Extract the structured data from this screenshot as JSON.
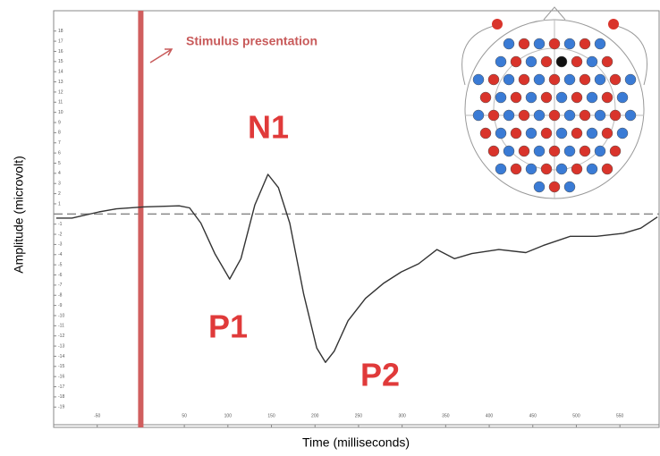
{
  "chart_data": {
    "type": "line",
    "x_label": "Time (milliseconds)",
    "y_label": "Amplitude (microvolt)",
    "annotations": [
      "Stimulus presentation",
      "N1",
      "P1",
      "P2"
    ],
    "stimulus_x": 0,
    "stimulus_color": "#d05e5e",
    "xlim": [
      -100,
      595
    ],
    "ylim": [
      -21,
      20
    ],
    "xticks": [
      -50,
      50,
      100,
      150,
      200,
      250,
      300,
      350,
      400,
      450,
      500,
      550
    ],
    "yticks": [
      18,
      17,
      16,
      15,
      14,
      13,
      12,
      11,
      10,
      9,
      8,
      7,
      6,
      5,
      4,
      3,
      2,
      1,
      -1,
      -2,
      -3,
      -4,
      -5,
      -6,
      -7,
      -8,
      -9,
      -10,
      -11,
      -12,
      -13,
      -14,
      -15,
      -16,
      -17,
      -18,
      -19
    ],
    "baseline": 0,
    "x": [
      -97,
      -79,
      -48,
      -28,
      3,
      44,
      56,
      69,
      85,
      102,
      115,
      131,
      146,
      158,
      171,
      187,
      202,
      212,
      222,
      238,
      258,
      279,
      299,
      319,
      340,
      360,
      380,
      411,
      442,
      462,
      493,
      523,
      554,
      574,
      593
    ],
    "series": [
      {
        "color": "#333333",
        "values": [
          -0.4,
          -0.4,
          0.2,
          0.5,
          0.7,
          0.8,
          0.6,
          -0.9,
          -3.9,
          -6.4,
          -4.4,
          0.9,
          3.9,
          2.6,
          -0.9,
          -7.9,
          -13.2,
          -14.6,
          -13.5,
          -10.5,
          -8.3,
          -6.8,
          -5.7,
          -4.9,
          -3.5,
          -4.4,
          -3.9,
          -3.5,
          -3.8,
          -3.1,
          -2.2,
          -2.2,
          -1.9,
          -1.4,
          -0.3
        ]
      }
    ]
  }
}
